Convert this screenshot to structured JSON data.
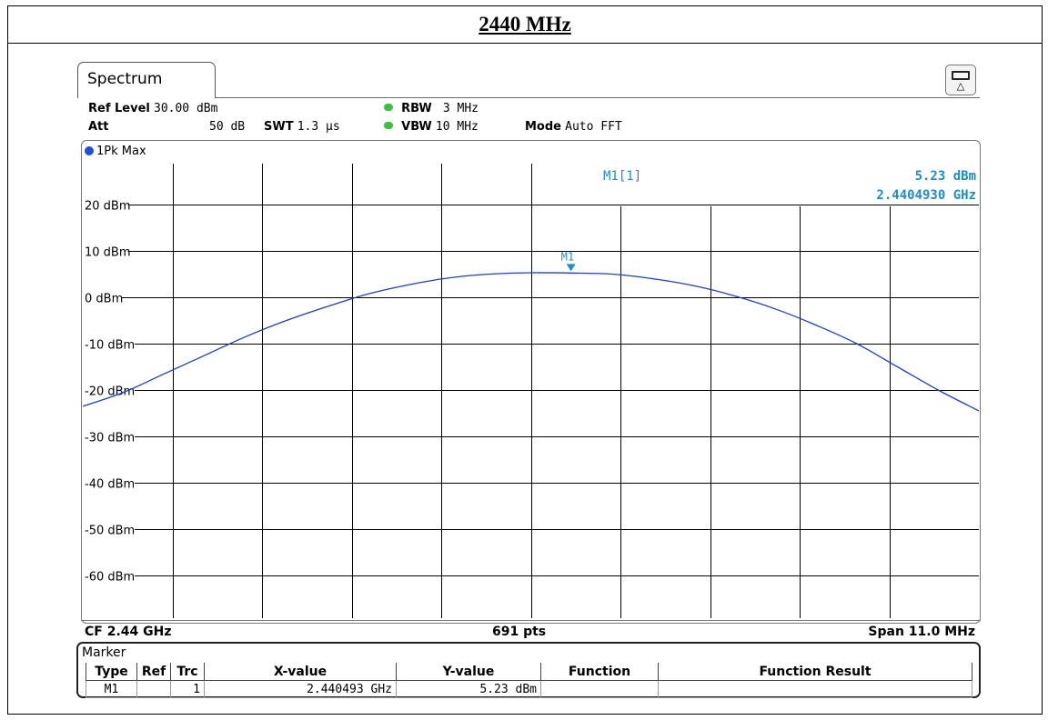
{
  "document": {
    "title": "2440 MHz"
  },
  "analyzer": {
    "tab_label": "Spectrum",
    "settings": {
      "ref_level_label": "Ref Level",
      "ref_level_value": "30.00 dBm",
      "att_label": "Att",
      "att_value": "50 dB",
      "swt_label": "SWT",
      "swt_value": "1.3 µs",
      "rbw_label": "RBW",
      "rbw_value": "3 MHz",
      "vbw_label": "VBW",
      "vbw_value": "10 MHz",
      "mode_label": "Mode",
      "mode_value": "Auto FFT"
    },
    "trace_label": "1Pk Max",
    "marker_readout": {
      "name": "M1[1]",
      "level": "5.23 dBm",
      "frequency": "2.4404930 GHz"
    },
    "footer": {
      "cf": "CF 2.44 GHz",
      "points": "691 pts",
      "span": "Span 11.0 MHz"
    },
    "marker_table": {
      "title": "Marker",
      "columns": [
        "Type",
        "Ref",
        "Trc",
        "X-value",
        "Y-value",
        "Function",
        "Function Result"
      ],
      "rows": [
        {
          "type": "M1",
          "ref": "",
          "trc": "1",
          "x_value": "2.440493 GHz",
          "y_value": "5.23 dBm",
          "function": "",
          "function_result": ""
        }
      ]
    },
    "colors": {
      "trace": "#1f3fbf",
      "marker": "#1e8fc0",
      "grid": "#000000",
      "status_dot": "#3fbf3f"
    }
  },
  "chart_data": {
    "type": "line",
    "title": "",
    "xlabel": "",
    "ylabel": "",
    "xlim": [
      2434.5,
      2445.5
    ],
    "x_unit": "MHz",
    "ylim": [
      -70,
      30
    ],
    "y_ticks": [
      20,
      10,
      0,
      -10,
      -20,
      -30,
      -40,
      -50,
      -60
    ],
    "y_tick_labels": [
      "20 dBm",
      "10 dBm",
      "0 dBm",
      "-10 dBm",
      "-20 dBm",
      "-30 dBm",
      "-40 dBm",
      "-50 dBm",
      "-60 dBm"
    ],
    "grid": true,
    "series": [
      {
        "x": [
          2434.5,
          2435.0,
          2435.5,
          2436.0,
          2436.5,
          2437.0,
          2437.5,
          2438.0,
          2438.5,
          2439.0,
          2439.5,
          2440.0,
          2440.5,
          2441.0,
          2441.5,
          2442.0,
          2442.5,
          2443.0,
          2443.5,
          2444.0,
          2444.5,
          2445.0,
          2445.5
        ],
        "values": [
          -23.5,
          -20.5,
          -16.5,
          -12.5,
          -8.5,
          -5.0,
          -2.0,
          0.7,
          2.7,
          4.2,
          5.0,
          5.3,
          5.23,
          5.0,
          4.0,
          2.5,
          0.3,
          -2.5,
          -6.0,
          -10.0,
          -15.0,
          -20.0,
          -24.5
        ]
      }
    ],
    "markers": [
      {
        "label": "M1",
        "x": 2440.493,
        "y": 5.23
      }
    ]
  }
}
